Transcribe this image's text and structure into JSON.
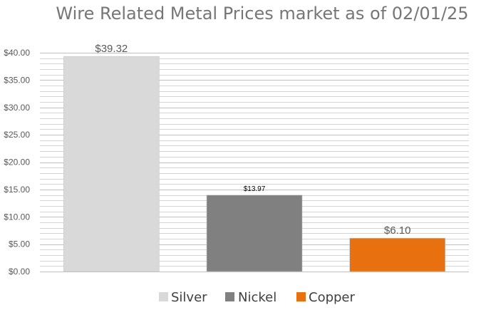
{
  "chart_data": {
    "type": "bar",
    "title": "Wire Related Metal Prices market as of 02/01/25",
    "xlabel": "",
    "ylabel": "",
    "ylim": [
      0,
      40
    ],
    "yticks": [
      "$0.00",
      "$5.00",
      "$10.00",
      "$15.00",
      "$20.00",
      "$25.00",
      "$30.00",
      "$35.00",
      "$40.00"
    ],
    "ytick_values": [
      0,
      5,
      10,
      15,
      20,
      25,
      30,
      35,
      40
    ],
    "minor_gridline_step": 1,
    "grid": true,
    "legend_position": "bottom",
    "series": [
      {
        "name": "Silver",
        "value": 39.32,
        "label": "$39.32",
        "color": "#d9d9d9"
      },
      {
        "name": "Nickel",
        "value": 13.97,
        "label": "$13.97",
        "color": "#808080"
      },
      {
        "name": "Copper",
        "value": 6.1,
        "label": "$6.10",
        "color": "#e8700f"
      }
    ]
  }
}
